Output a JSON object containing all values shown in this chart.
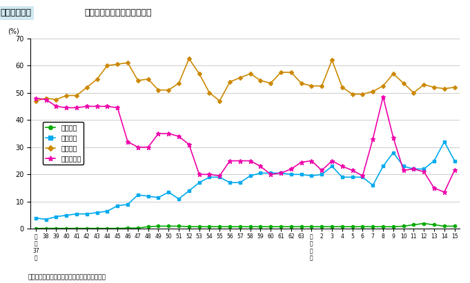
{
  "title": "図２－３－１　防災関係予算内訳割合の推移",
  "ylabel": "(%)",
  "ylim": [
    0,
    70
  ],
  "yticks": [
    0,
    10,
    20,
    30,
    40,
    50,
    60,
    70
  ],
  "note": "注）各省庁資料を基に、内閣府において作成。",
  "x_labels": [
    "昭\n和\n37\n年",
    "38",
    "39",
    "40",
    "41",
    "42",
    "43",
    "44",
    "45",
    "46",
    "47",
    "48",
    "49",
    "50",
    "51",
    "52",
    "53",
    "54",
    "55",
    "56",
    "57",
    "58",
    "59",
    "60",
    "61",
    "62",
    "63",
    "平\n成\n元\n年",
    "2",
    "3",
    "4",
    "5",
    "6",
    "7",
    "8",
    "9",
    "10",
    "11",
    "12",
    "13",
    "14",
    "15"
  ],
  "x_indices": [
    0,
    1,
    2,
    3,
    4,
    5,
    6,
    7,
    8,
    9,
    10,
    11,
    12,
    13,
    14,
    15,
    16,
    17,
    18,
    19,
    20,
    21,
    22,
    23,
    24,
    25,
    26,
    27,
    28,
    29,
    30,
    31,
    32,
    33,
    34,
    35,
    36,
    37,
    38,
    39,
    40,
    41
  ],
  "kagaku_gijutsu": [
    0.2,
    0.2,
    0.2,
    0.2,
    0.2,
    0.2,
    0.2,
    0.2,
    0.2,
    0.3,
    0.3,
    0.8,
    1.0,
    1.0,
    1.0,
    0.8,
    0.8,
    0.8,
    0.8,
    0.8,
    0.8,
    0.8,
    0.8,
    0.8,
    0.8,
    0.8,
    0.8,
    0.8,
    0.8,
    0.8,
    0.8,
    0.8,
    0.8,
    0.8,
    0.8,
    0.8,
    1.0,
    1.5,
    2.0,
    1.5,
    1.0,
    1.0
  ],
  "saigai_yobo": [
    4.0,
    3.5,
    4.5,
    5.0,
    5.5,
    5.5,
    6.0,
    6.5,
    8.5,
    9.0,
    12.5,
    12.0,
    11.5,
    13.5,
    11.0,
    14.0,
    17.0,
    19.0,
    19.0,
    17.0,
    17.0,
    19.5,
    20.5,
    20.5,
    20.5,
    20.0,
    20.0,
    19.5,
    20.0,
    23.0,
    19.0,
    19.0,
    19.0,
    16.0,
    23.0,
    28.0,
    23.0,
    22.0,
    22.0,
    25.0,
    32.0,
    25.0
  ],
  "kokudo_hozen": [
    47.0,
    48.0,
    47.5,
    49.0,
    49.0,
    52.0,
    55.0,
    60.0,
    60.5,
    61.0,
    54.5,
    55.0,
    51.0,
    51.0,
    53.5,
    62.5,
    57.0,
    50.0,
    47.0,
    54.0,
    55.5,
    57.0,
    54.5,
    53.5,
    57.5,
    57.5,
    53.5,
    52.5,
    52.5,
    62.0,
    52.0,
    49.5,
    49.5,
    50.5,
    52.5,
    57.0,
    53.5,
    50.0,
    53.0,
    52.0,
    51.5,
    52.0
  ],
  "saigai_fukukyuu": [
    48.0,
    47.5,
    45.0,
    44.5,
    44.5,
    45.0,
    45.0,
    45.0,
    44.5,
    32.0,
    30.0,
    30.0,
    35.0,
    35.0,
    34.0,
    31.0,
    20.0,
    20.0,
    19.5,
    25.0,
    25.0,
    25.0,
    23.0,
    20.0,
    20.5,
    22.0,
    24.5,
    25.0,
    21.5,
    25.0,
    23.0,
    21.5,
    19.5,
    33.0,
    48.5,
    33.5,
    21.5,
    22.0,
    21.0,
    15.0,
    13.5,
    21.5
  ],
  "color_kagaku": "#00aa00",
  "color_yobo": "#00aaee",
  "color_kokudo": "#cc8800",
  "color_fukukyuu": "#ee00aa",
  "marker_kagaku": "o",
  "marker_yobo": "s",
  "marker_kokudo": "D",
  "marker_fukukyuu": "*"
}
